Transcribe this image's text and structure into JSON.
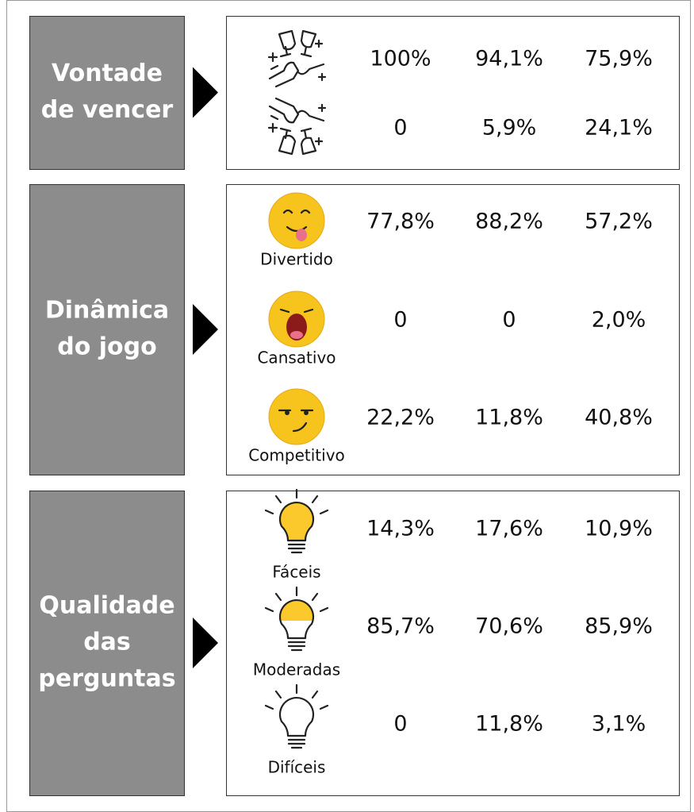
{
  "sections": [
    {
      "title_lines": [
        "Vontade",
        "de vencer"
      ],
      "rows": [
        {
          "values": [
            "100%",
            "94,1%",
            "75,9%"
          ]
        },
        {
          "values": [
            "0",
            "5,9%",
            "24,1%"
          ]
        }
      ]
    },
    {
      "title_lines": [
        "Dinâmica",
        "do jogo"
      ],
      "rows": [
        {
          "label": "Divertido",
          "values": [
            "77,8%",
            "88,2%",
            "57,2%"
          ]
        },
        {
          "label": "Cansativo",
          "values": [
            "0",
            "0",
            "2,0%"
          ]
        },
        {
          "label": "Competitivo",
          "values": [
            "22,2%",
            "11,8%",
            "40,8%"
          ]
        }
      ]
    },
    {
      "title_lines": [
        "Qualidade",
        "das",
        "perguntas"
      ],
      "rows": [
        {
          "label": "Fáceis",
          "values": [
            "14,3%",
            "17,6%",
            "10,9%"
          ]
        },
        {
          "label": "Moderadas",
          "values": [
            "85,7%",
            "70,6%",
            "85,9%"
          ]
        },
        {
          "label": "Difíceis",
          "values": [
            "0",
            "11,8%",
            "3,1%"
          ]
        }
      ]
    }
  ]
}
